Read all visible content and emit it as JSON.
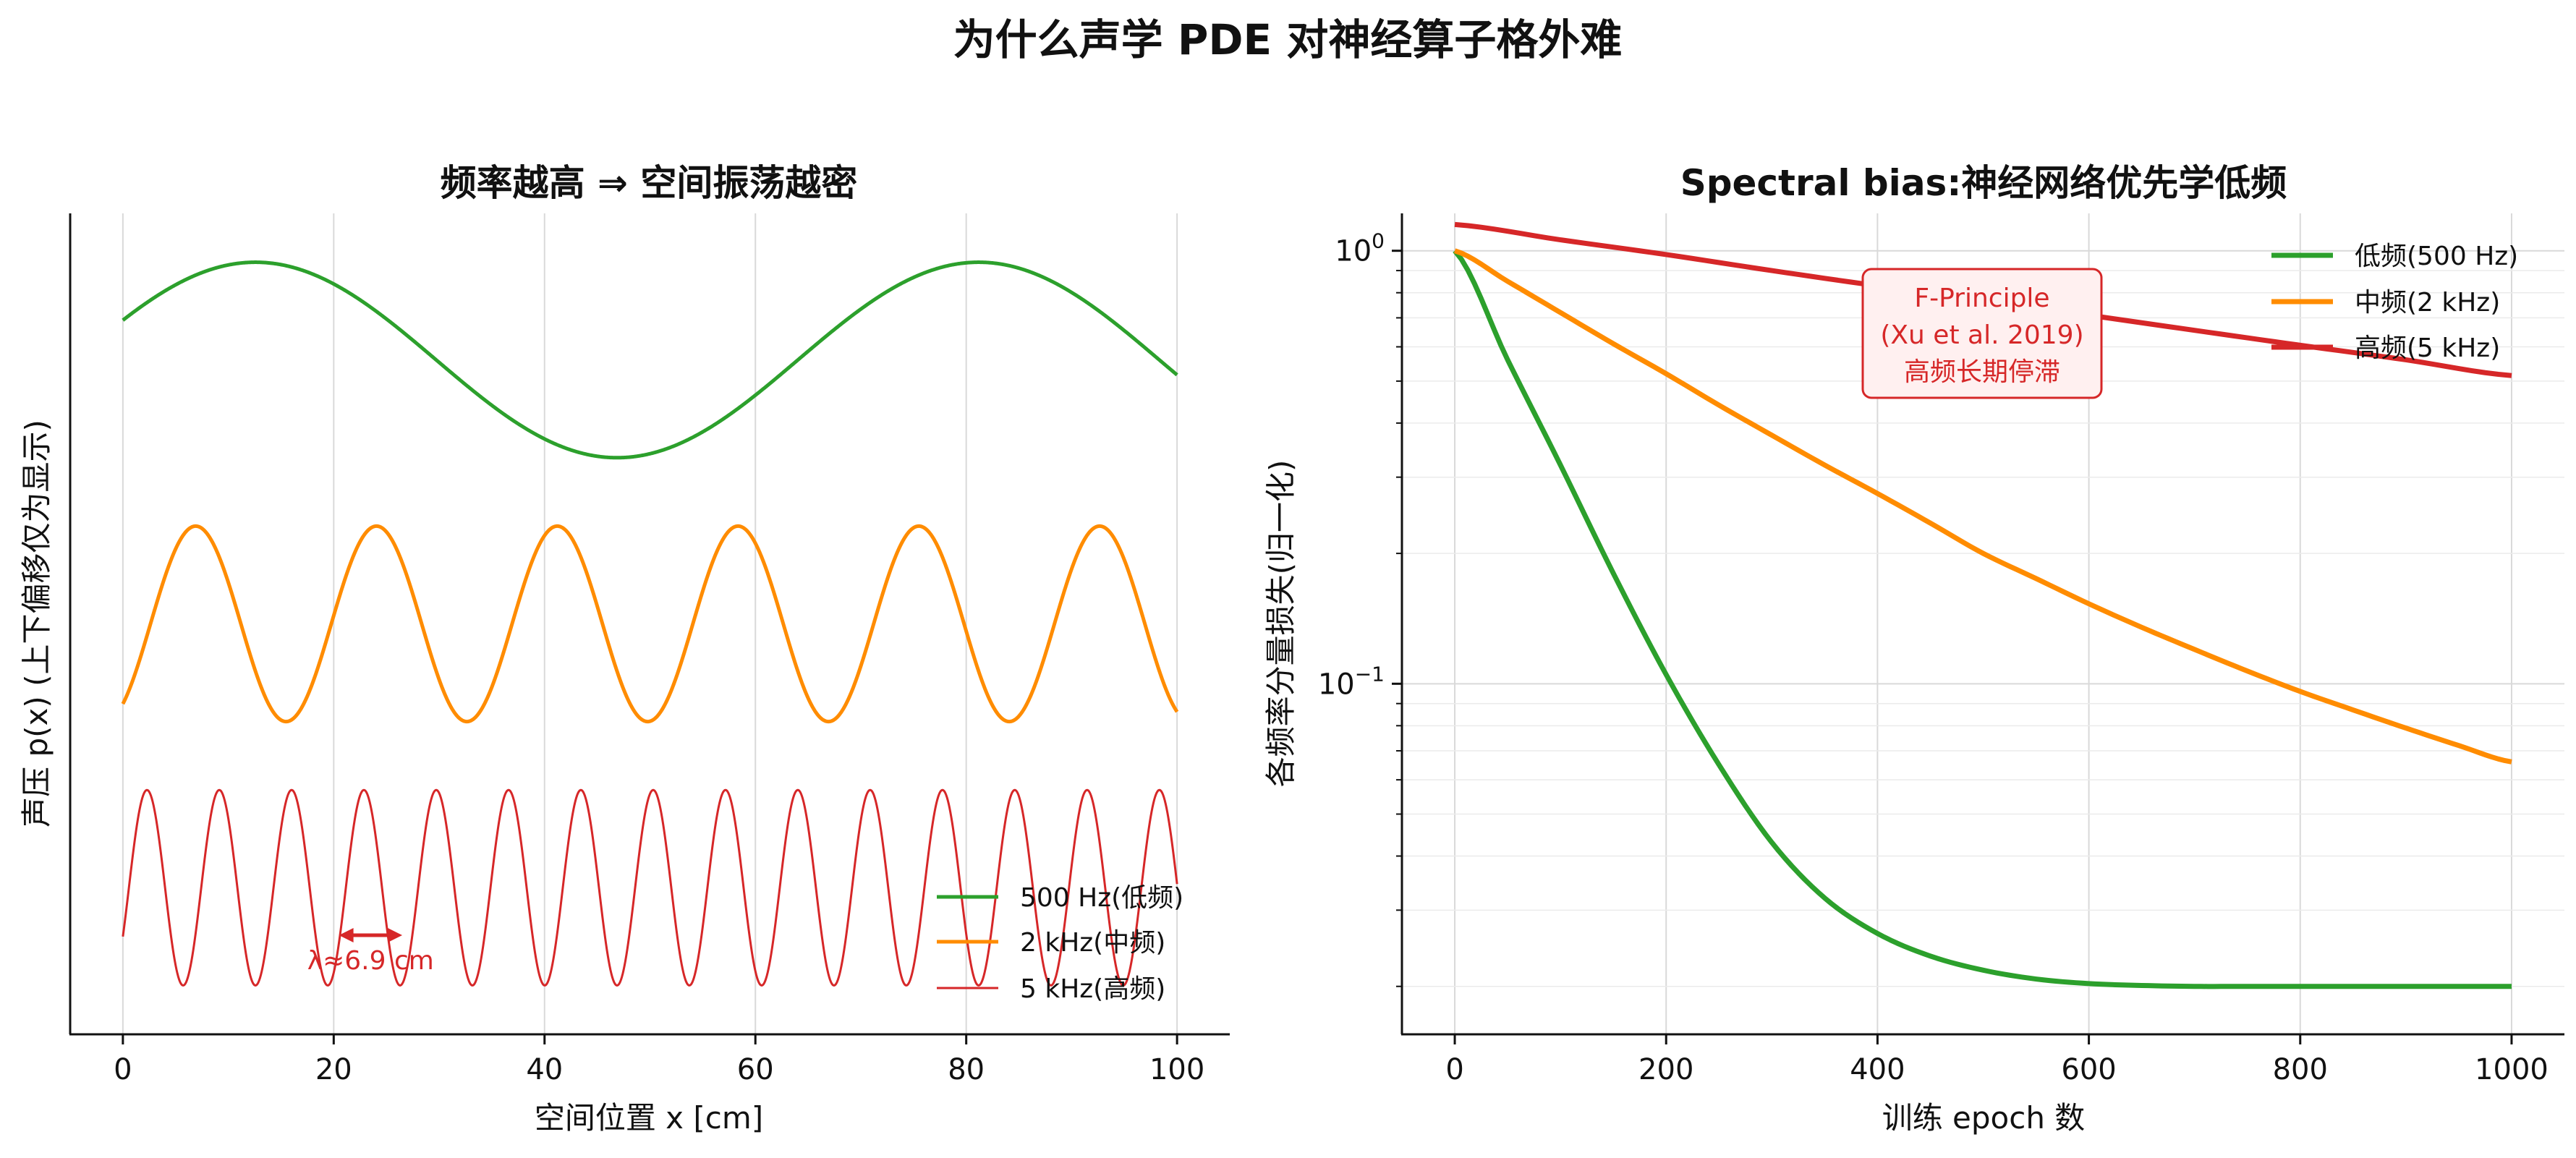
{
  "figure_title": "为什么声学 PDE 对神经算子格外难",
  "chart_data": [
    {
      "type": "line",
      "title": "频率越高 ⇒ 空间振荡越密",
      "xlabel": "空间位置  x  [cm]",
      "ylabel": "声压  p(x) (上下偏移仅为显示)",
      "xlim": [
        -5,
        105
      ],
      "x_ticks": [
        "0",
        "20",
        "40",
        "60",
        "80",
        "100"
      ],
      "x_tick_values": [
        0,
        20,
        40,
        60,
        80,
        100
      ],
      "grid": "x-only",
      "legend_position": "lower-right",
      "series": [
        {
          "name": "500 Hz(低频)",
          "color": "#2ca02c",
          "frequency_hz": 500,
          "wavelength_cm": 68.6,
          "phase_deg": 24,
          "offset": 2.7,
          "amplitude": 1
        },
        {
          "name": "2 kHz(中频)",
          "color": "#ff8c00",
          "frequency_hz": 2000,
          "wavelength_cm": 17.15,
          "phase_deg": -55,
          "offset": 0,
          "amplitude": 1
        },
        {
          "name": "5 kHz(高频)",
          "color": "#d62728",
          "frequency_hz": 5000,
          "wavelength_cm": 6.86,
          "phase_deg": -30,
          "offset": -2.7,
          "amplitude": 1
        }
      ],
      "annotation": {
        "text": "λ≈6.9 cm",
        "color": "#d62728",
        "x_from": 20.5,
        "x_to": 26.5
      }
    },
    {
      "type": "line",
      "title": "Spectral bias:神经网络优先学低频",
      "xlabel": "训练 epoch 数",
      "ylabel": "各频率分量损失(归一化)",
      "xlim": [
        -50,
        1050
      ],
      "y_scale": "log",
      "ylim": [
        0.0155,
        1.22
      ],
      "x_ticks": [
        "0",
        "200",
        "400",
        "600",
        "800",
        "1000"
      ],
      "x_tick_values": [
        0,
        200,
        400,
        600,
        800,
        1000
      ],
      "y_ticks": [
        "10^0",
        "10^-1"
      ],
      "grid": "both",
      "legend_position": "top-right",
      "series": [
        {
          "name": "低频(500 Hz)",
          "color": "#2ca02c",
          "x": [
            0,
            50,
            100,
            150,
            200,
            250,
            300,
            350,
            400,
            450,
            500,
            550,
            600,
            650,
            700,
            750,
            800,
            850,
            900,
            950,
            1000
          ],
          "values": [
            1.0,
            0.56,
            0.32,
            0.18,
            0.105,
            0.065,
            0.043,
            0.032,
            0.0265,
            0.0235,
            0.0218,
            0.0208,
            0.0203,
            0.0201,
            0.02,
            0.02,
            0.02,
            0.02,
            0.02,
            0.02,
            0.02
          ]
        },
        {
          "name": "中频(2 kHz)",
          "color": "#ff8c00",
          "x": [
            0,
            50,
            100,
            150,
            200,
            250,
            300,
            350,
            400,
            450,
            500,
            550,
            600,
            650,
            700,
            750,
            800,
            850,
            900,
            950,
            1000
          ],
          "values": [
            1.0,
            0.85,
            0.72,
            0.61,
            0.52,
            0.44,
            0.375,
            0.32,
            0.275,
            0.235,
            0.2,
            0.175,
            0.153,
            0.135,
            0.12,
            0.107,
            0.096,
            0.087,
            0.079,
            0.072,
            0.066
          ]
        },
        {
          "name": "高频(5 kHz)",
          "color": "#d62728",
          "x": [
            0,
            100,
            200,
            300,
            400,
            500,
            600,
            700,
            800,
            900,
            1000
          ],
          "values": [
            1.15,
            1.06,
            0.98,
            0.9,
            0.83,
            0.77,
            0.71,
            0.655,
            0.605,
            0.56,
            0.515
          ]
        }
      ],
      "annotation": {
        "lines": [
          "F-Principle",
          "(Xu et al. 2019)",
          "高频长期停滞"
        ],
        "color": "#d62728",
        "box_fill": "#fff0f0"
      }
    }
  ]
}
